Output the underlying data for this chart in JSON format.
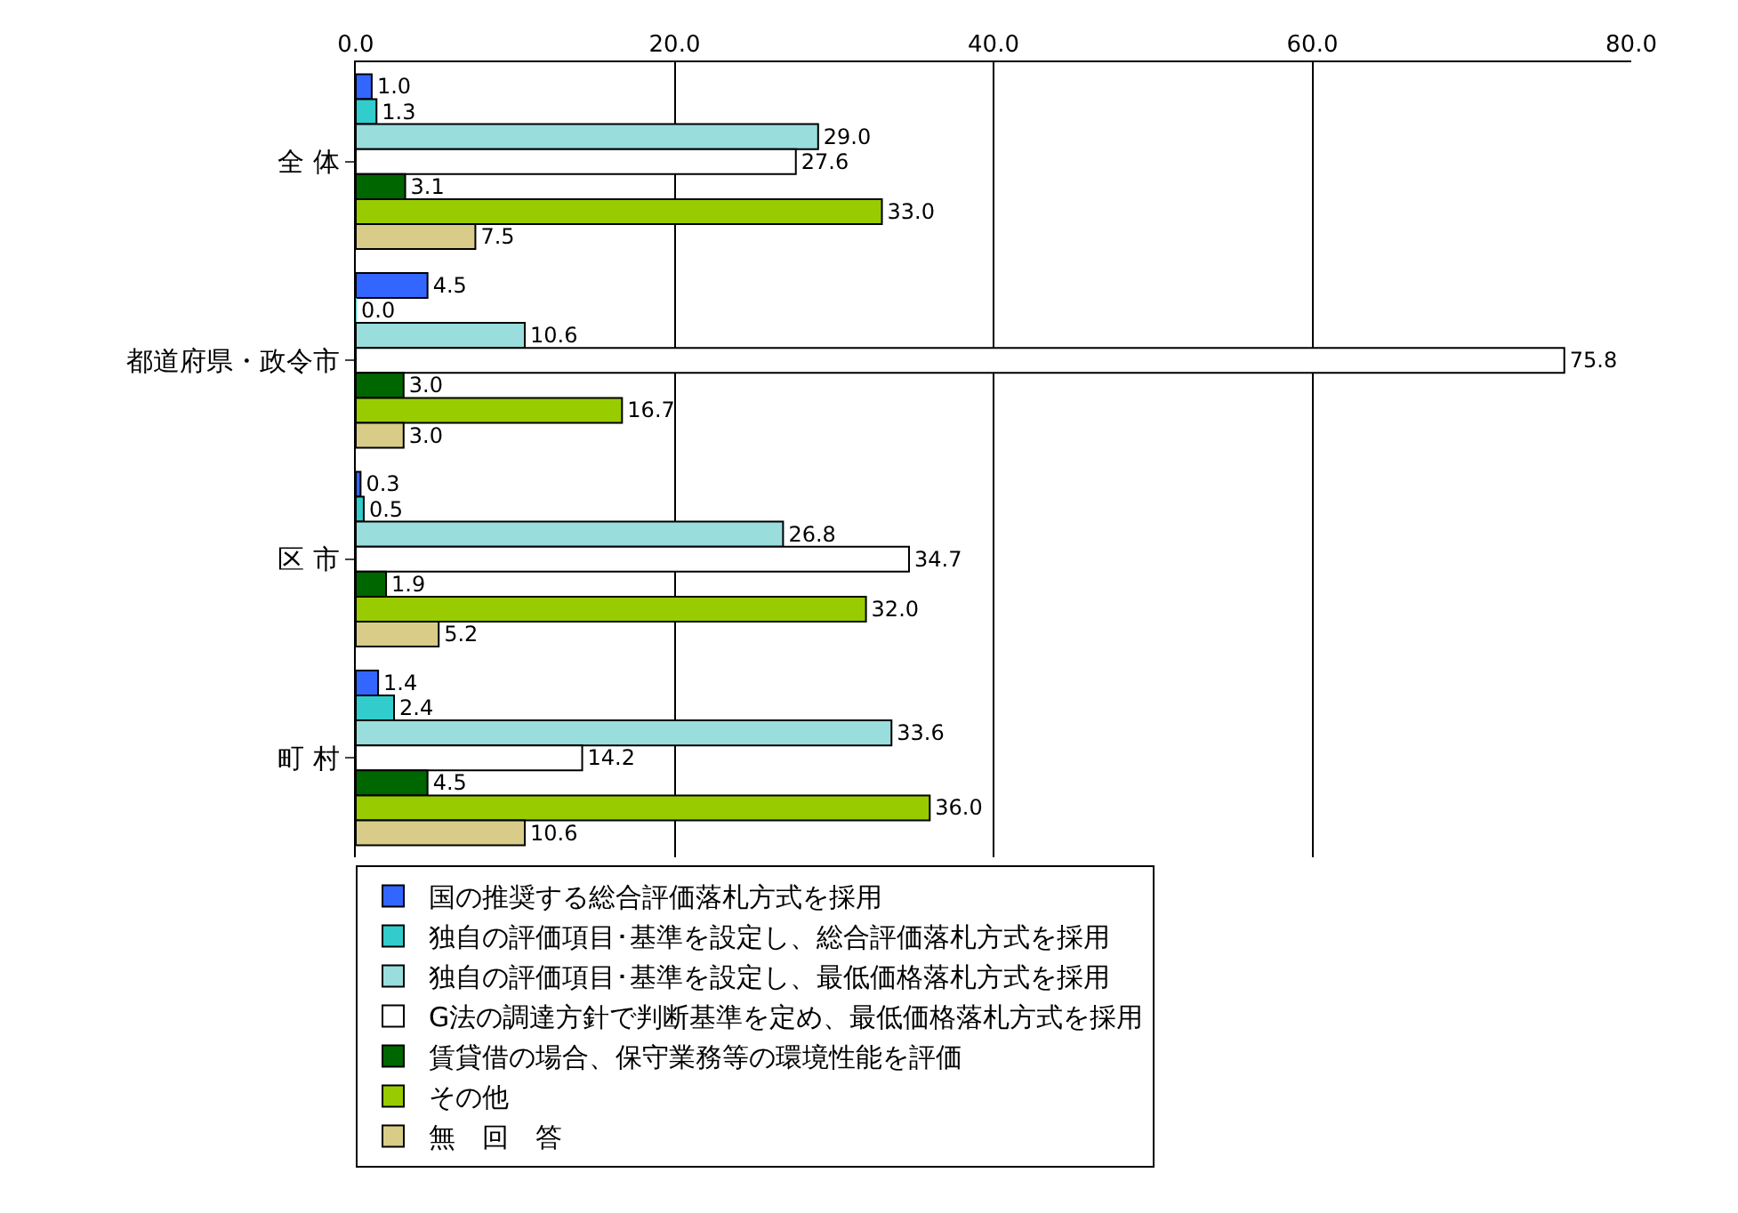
{
  "chart_data": {
    "type": "bar",
    "orientation": "horizontal",
    "categories": [
      "全 体",
      "都道府県・政令市",
      "区 市",
      "町 村"
    ],
    "series": [
      {
        "name": "国の推奨する総合評価落札方式を採用",
        "color": "#3366ff",
        "values": [
          1.0,
          4.5,
          0.3,
          1.4
        ],
        "value_labels": [
          "1.0",
          "4.5",
          "0.3",
          "1.4"
        ]
      },
      {
        "name": "独自の評価項目･基準を設定し、総合評価落札方式を採用",
        "color": "#33cccc",
        "values": [
          1.3,
          0.0,
          0.5,
          2.4
        ],
        "value_labels": [
          "1.3",
          "0.0",
          "0.5",
          "2.4"
        ]
      },
      {
        "name": "独自の評価項目･基準を設定し、最低価格落札方式を採用",
        "color": "#99dddd",
        "values": [
          29.0,
          10.6,
          26.8,
          33.6
        ],
        "value_labels": [
          "29.0",
          "10.6",
          "26.8",
          "33.6"
        ]
      },
      {
        "name": "G法の調達方針で判断基準を定め、最低価格落札方式を採用",
        "color": "#ffffff",
        "values": [
          27.6,
          75.8,
          34.7,
          14.2
        ],
        "value_labels": [
          "27.6",
          "75.8",
          "34.7",
          "14.2"
        ]
      },
      {
        "name": "賃貸借の場合、保守業務等の環境性能を評価",
        "color": "#006600",
        "values": [
          3.1,
          3.0,
          1.9,
          4.5
        ],
        "value_labels": [
          "3.1",
          "3.0",
          "1.9",
          "4.5"
        ]
      },
      {
        "name": "その他",
        "color": "#99cc00",
        "values": [
          33.0,
          16.7,
          32.0,
          36.0
        ],
        "value_labels": [
          "33.0",
          "16.7",
          "32.0",
          "36.0"
        ]
      },
      {
        "name": "無　回　答",
        "color": "#d8cc88",
        "values": [
          7.5,
          3.0,
          5.2,
          10.6
        ],
        "value_labels": [
          "7.5",
          "3.0",
          "5.2",
          "10.6"
        ]
      }
    ],
    "xlim": [
      0,
      80
    ],
    "xticks": [
      {
        "value": 0,
        "label": "0.0"
      },
      {
        "value": 20,
        "label": "20.0"
      },
      {
        "value": 40,
        "label": "40.0"
      },
      {
        "value": 60,
        "label": "60.0"
      },
      {
        "value": 80,
        "label": "80.0"
      }
    ],
    "grid": "x",
    "legend": "bottom"
  }
}
